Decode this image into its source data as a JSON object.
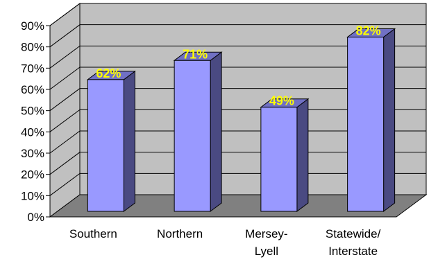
{
  "chart_data": {
    "type": "bar",
    "title": "",
    "xlabel": "",
    "ylabel": "",
    "categories": [
      [
        "Southern"
      ],
      [
        "Northern"
      ],
      [
        "Mersey-",
        "Lyell"
      ],
      [
        "Statewide/",
        "Interstate"
      ]
    ],
    "values": [
      62,
      71,
      49,
      82
    ],
    "data_labels": [
      "62%",
      "71%",
      "49%",
      "82%"
    ],
    "ylim": [
      0,
      90
    ],
    "yticks": [
      "0%",
      "10%",
      "20%",
      "30%",
      "40%",
      "50%",
      "60%",
      "70%",
      "80%",
      "90%"
    ],
    "grid": true,
    "legend": "none",
    "style": "3d-column"
  },
  "colors": {
    "bar_front": "#9999ff",
    "bar_side": "#4a4a82",
    "bar_top": "#7070c4",
    "wall": "#c0c0c0",
    "floor": "#808080",
    "gridline": "#000000",
    "data_label": "#ffff00"
  }
}
